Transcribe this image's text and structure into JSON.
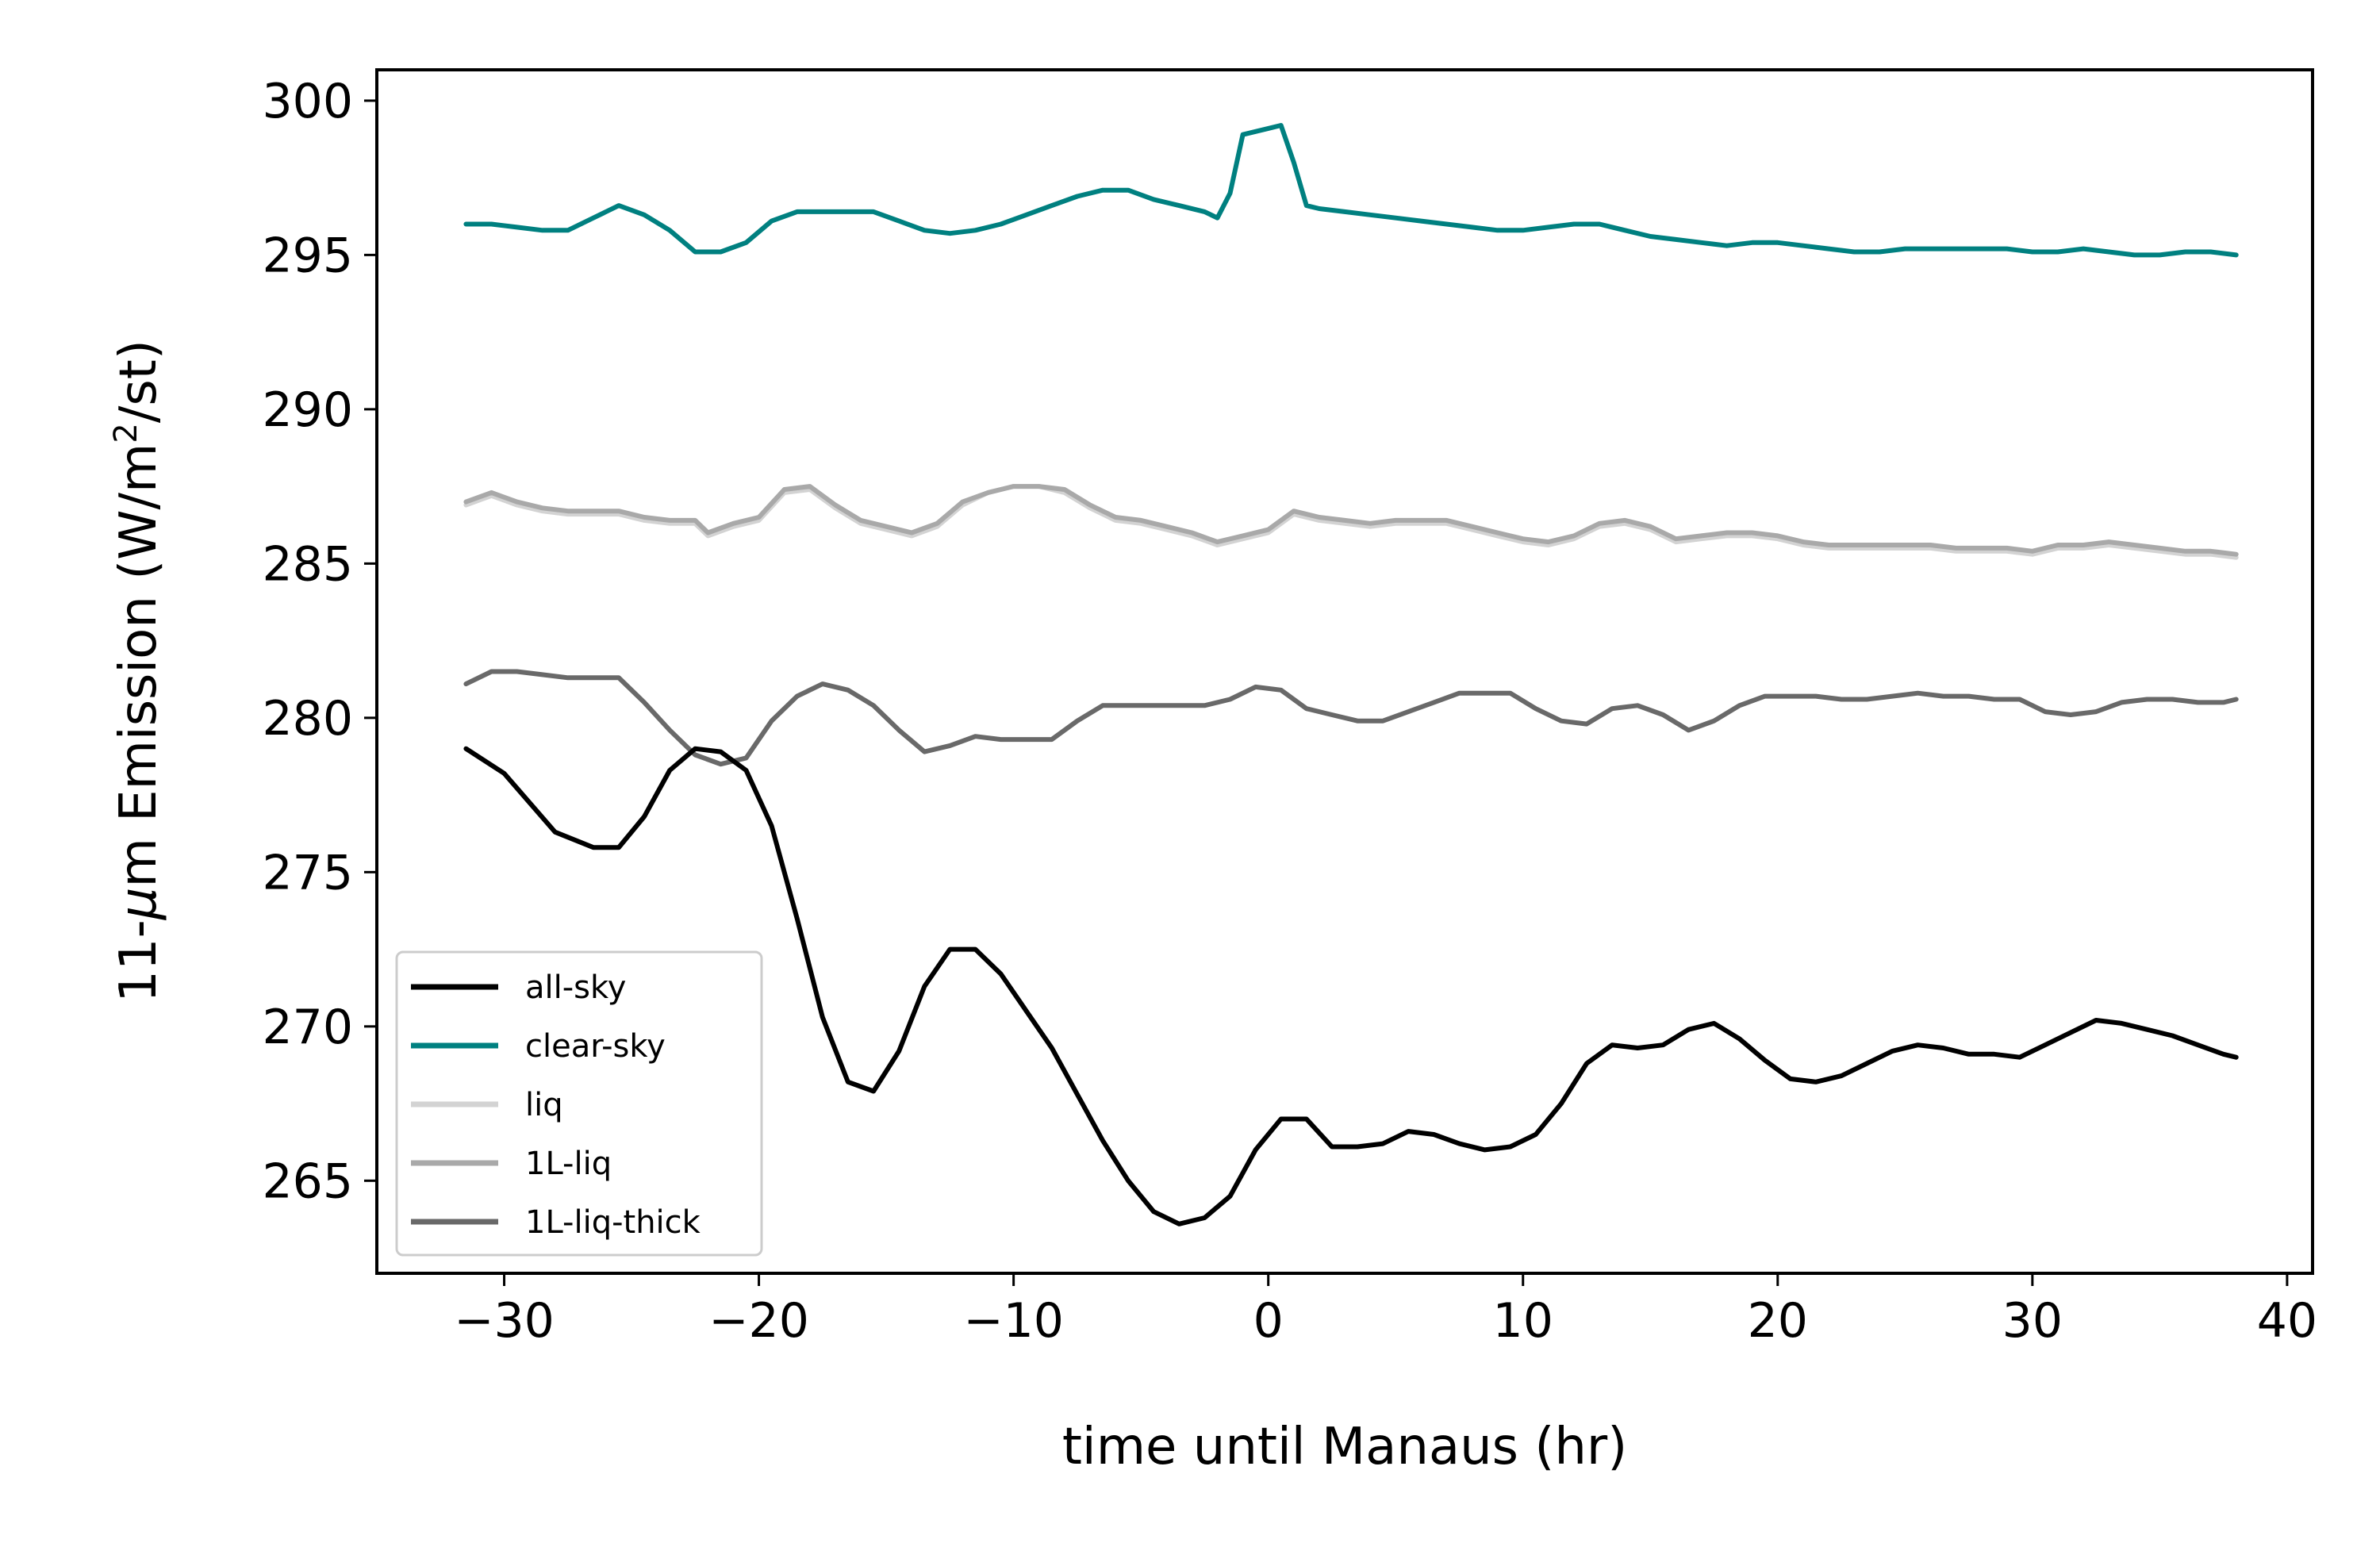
{
  "chart_data": {
    "type": "line",
    "title": "",
    "xlabel": "time until Manaus (hr)",
    "ylabel_parts": {
      "prefix": "11-",
      "mu": "μ",
      "mid": "m Emission (W/m",
      "sup": "2",
      "suffix": "/st)"
    },
    "xlim": [
      -35,
      41
    ],
    "ylim": [
      262,
      301
    ],
    "xticks": [
      -30,
      -20,
      -10,
      0,
      10,
      20,
      30,
      40
    ],
    "xtick_labels": [
      "−30",
      "−20",
      "−10",
      "0",
      "10",
      "20",
      "30",
      "40"
    ],
    "yticks": [
      265,
      270,
      275,
      280,
      285,
      290,
      295,
      300
    ],
    "ytick_labels": [
      "265",
      "270",
      "275",
      "280",
      "285",
      "290",
      "295",
      "300"
    ],
    "legend_position": "lower-left",
    "series": [
      {
        "name": "all-sky",
        "color": "#000000",
        "x": [
          -31.5,
          -30,
          -28,
          -26.5,
          -25.5,
          -24.5,
          -23.5,
          -22.5,
          -21.5,
          -20.5,
          -19.5,
          -18.5,
          -17.5,
          -16.5,
          -15.5,
          -14.5,
          -13.5,
          -12.5,
          -11.5,
          -10.5,
          -9.5,
          -8.5,
          -7.5,
          -6.5,
          -5.5,
          -4.5,
          -3.5,
          -2.5,
          -1.5,
          -0.5,
          0.5,
          1.5,
          2.5,
          3.5,
          4.5,
          5.5,
          6.5,
          7.5,
          8.5,
          9.5,
          10.5,
          11.5,
          12.5,
          13.5,
          14.5,
          15.5,
          16.5,
          17.5,
          18.5,
          19.5,
          20.5,
          21.5,
          22.5,
          23.5,
          24.5,
          25.5,
          26.5,
          27.5,
          28.5,
          29.5,
          30.5,
          31.5,
          32.5,
          33.5,
          34.5,
          35.5,
          36.5,
          37.5,
          38
        ],
        "y": [
          279,
          278.2,
          276.3,
          275.8,
          275.8,
          276.8,
          278.3,
          279,
          278.9,
          278.3,
          276.5,
          273.5,
          270.3,
          268.2,
          267.9,
          269.2,
          271.3,
          272.5,
          272.5,
          271.7,
          270.5,
          269.3,
          267.8,
          266.3,
          265,
          264,
          263.6,
          263.8,
          264.5,
          266,
          267,
          267,
          266.1,
          266.1,
          266.2,
          266.6,
          266.5,
          266.2,
          266,
          266.1,
          266.5,
          267.5,
          268.8,
          269.4,
          269.3,
          269.4,
          269.9,
          270.1,
          269.6,
          268.9,
          268.3,
          268.2,
          268.4,
          268.8,
          269.2,
          269.4,
          269.3,
          269.1,
          269.1,
          269,
          269.4,
          269.8,
          270.2,
          270.1,
          269.9,
          269.7,
          269.4,
          269.1,
          269
        ]
      },
      {
        "name": "clear-sky",
        "color": "#008080",
        "x": [
          -31.5,
          -30.5,
          -29.5,
          -28.5,
          -27.5,
          -26.5,
          -25.5,
          -24.5,
          -23.5,
          -22.5,
          -21.5,
          -20.5,
          -19.5,
          -18.5,
          -17.5,
          -16.5,
          -15.5,
          -14.5,
          -13.5,
          -12.5,
          -11.5,
          -10.5,
          -9.5,
          -8.5,
          -7.5,
          -6.5,
          -5.5,
          -4.5,
          -3.5,
          -2.5,
          -2,
          -1.5,
          -1,
          -0.5,
          0,
          0.5,
          1,
          1.5,
          2,
          3,
          4,
          5,
          6,
          7,
          8,
          9,
          10,
          11,
          12,
          13,
          14,
          15,
          16,
          17,
          18,
          19,
          20,
          21,
          22,
          23,
          24,
          25,
          26,
          27,
          28,
          29,
          30,
          31,
          32,
          33,
          34,
          35,
          36,
          37,
          38
        ],
        "y": [
          296,
          296,
          295.9,
          295.8,
          295.8,
          296.2,
          296.6,
          296.3,
          295.8,
          295.1,
          295.1,
          295.4,
          296.1,
          296.4,
          296.4,
          296.4,
          296.4,
          296.1,
          295.8,
          295.7,
          295.8,
          296,
          296.3,
          296.6,
          296.9,
          297.1,
          297.1,
          296.8,
          296.6,
          296.4,
          296.2,
          297,
          298.9,
          299,
          299.1,
          299.2,
          298,
          296.6,
          296.5,
          296.4,
          296.3,
          296.2,
          296.1,
          296,
          295.9,
          295.8,
          295.8,
          295.9,
          296,
          296,
          295.8,
          295.6,
          295.5,
          295.4,
          295.3,
          295.4,
          295.4,
          295.3,
          295.2,
          295.1,
          295.1,
          295.2,
          295.2,
          295.2,
          295.2,
          295.2,
          295.1,
          295.1,
          295.2,
          295.1,
          295,
          295,
          295.1,
          295.1,
          295
        ]
      },
      {
        "name": "liq",
        "color": "#d3d3d3",
        "x": [
          -31.5,
          -30.5,
          -29.5,
          -28.5,
          -27.5,
          -26.5,
          -25.5,
          -24.5,
          -23.5,
          -22.5,
          -22,
          -21,
          -20,
          -19,
          -18,
          -17,
          -16,
          -15,
          -14,
          -13,
          -12,
          -11,
          -10,
          -9,
          -8,
          -7,
          -6,
          -5,
          -4,
          -3,
          -2,
          -1,
          0,
          1,
          2,
          3,
          4,
          5,
          6,
          7,
          8,
          9,
          10,
          11,
          12,
          13,
          14,
          15,
          16,
          17,
          18,
          19,
          20,
          21,
          22,
          23,
          24,
          25,
          26,
          27,
          28,
          29,
          30,
          31,
          32,
          33,
          34,
          35,
          36,
          37,
          38
        ],
        "y": [
          286.9,
          287.2,
          286.9,
          286.7,
          286.6,
          286.6,
          286.6,
          286.4,
          286.3,
          286.3,
          285.9,
          286.2,
          286.4,
          287.3,
          287.4,
          286.8,
          286.3,
          286.1,
          285.9,
          286.2,
          286.9,
          287.3,
          287.5,
          287.5,
          287.3,
          286.8,
          286.4,
          286.3,
          286.1,
          285.9,
          285.6,
          285.8,
          286,
          286.6,
          286.4,
          286.3,
          286.2,
          286.3,
          286.3,
          286.3,
          286.1,
          285.9,
          285.7,
          285.6,
          285.8,
          286.2,
          286.3,
          286.1,
          285.7,
          285.8,
          285.9,
          285.9,
          285.8,
          285.6,
          285.5,
          285.5,
          285.5,
          285.5,
          285.5,
          285.4,
          285.4,
          285.4,
          285.3,
          285.5,
          285.5,
          285.6,
          285.5,
          285.4,
          285.3,
          285.3,
          285.2
        ]
      },
      {
        "name": "1L-liq",
        "color": "#a9a9a9",
        "x": [
          -31.5,
          -30.5,
          -29.5,
          -28.5,
          -27.5,
          -26.5,
          -25.5,
          -24.5,
          -23.5,
          -22.5,
          -22,
          -21,
          -20,
          -19,
          -18,
          -17,
          -16,
          -15,
          -14,
          -13,
          -12,
          -11,
          -10,
          -9,
          -8,
          -7,
          -6,
          -5,
          -4,
          -3,
          -2,
          -1,
          0,
          1,
          2,
          3,
          4,
          5,
          6,
          7,
          8,
          9,
          10,
          11,
          12,
          13,
          14,
          15,
          16,
          17,
          18,
          19,
          20,
          21,
          22,
          23,
          24,
          25,
          26,
          27,
          28,
          29,
          30,
          31,
          32,
          33,
          34,
          35,
          36,
          37,
          38
        ],
        "y": [
          287,
          287.3,
          287,
          286.8,
          286.7,
          286.7,
          286.7,
          286.5,
          286.4,
          286.4,
          286,
          286.3,
          286.5,
          287.4,
          287.5,
          286.9,
          286.4,
          286.2,
          286,
          286.3,
          287,
          287.3,
          287.5,
          287.5,
          287.4,
          286.9,
          286.5,
          286.4,
          286.2,
          286,
          285.7,
          285.9,
          286.1,
          286.7,
          286.5,
          286.4,
          286.3,
          286.4,
          286.4,
          286.4,
          286.2,
          286,
          285.8,
          285.7,
          285.9,
          286.3,
          286.4,
          286.2,
          285.8,
          285.9,
          286,
          286,
          285.9,
          285.7,
          285.6,
          285.6,
          285.6,
          285.6,
          285.6,
          285.5,
          285.5,
          285.5,
          285.4,
          285.6,
          285.6,
          285.7,
          285.6,
          285.5,
          285.4,
          285.4,
          285.3
        ]
      },
      {
        "name": "1L-liq-thick",
        "color": "#696969",
        "x": [
          -31.5,
          -30.5,
          -29.5,
          -28.5,
          -27.5,
          -26.5,
          -25.5,
          -24.5,
          -23.5,
          -22.5,
          -21.5,
          -20.5,
          -19.5,
          -18.5,
          -17.5,
          -16.5,
          -15.5,
          -14.5,
          -13.5,
          -12.5,
          -11.5,
          -10.5,
          -9.5,
          -8.5,
          -7.5,
          -6.5,
          -5.5,
          -4.5,
          -3.5,
          -2.5,
          -1.5,
          -0.5,
          0.5,
          1.5,
          2.5,
          3.5,
          4.5,
          5.5,
          6.5,
          7.5,
          8.5,
          9.5,
          10.5,
          11.5,
          12.5,
          13.5,
          14.5,
          15.5,
          16.5,
          17.5,
          18.5,
          19.5,
          20.5,
          21.5,
          22.5,
          23.5,
          24.5,
          25.5,
          26.5,
          27.5,
          28.5,
          29.5,
          30.5,
          31.5,
          32.5,
          33.5,
          34.5,
          35.5,
          36.5,
          37.5,
          38
        ],
        "y": [
          281.1,
          281.5,
          281.5,
          281.4,
          281.3,
          281.3,
          281.3,
          280.5,
          279.6,
          278.8,
          278.5,
          278.7,
          279.9,
          280.7,
          281.1,
          280.9,
          280.4,
          279.6,
          278.9,
          279.1,
          279.4,
          279.3,
          279.3,
          279.3,
          279.9,
          280.4,
          280.4,
          280.4,
          280.4,
          280.4,
          280.6,
          281,
          280.9,
          280.3,
          280.1,
          279.9,
          279.9,
          280.2,
          280.5,
          280.8,
          280.8,
          280.8,
          280.3,
          279.9,
          279.8,
          280.3,
          280.4,
          280.1,
          279.6,
          279.9,
          280.4,
          280.7,
          280.7,
          280.7,
          280.6,
          280.6,
          280.7,
          280.8,
          280.7,
          280.7,
          280.6,
          280.6,
          280.2,
          280.1,
          280.2,
          280.5,
          280.6,
          280.6,
          280.5,
          280.5,
          280.6
        ]
      }
    ]
  }
}
